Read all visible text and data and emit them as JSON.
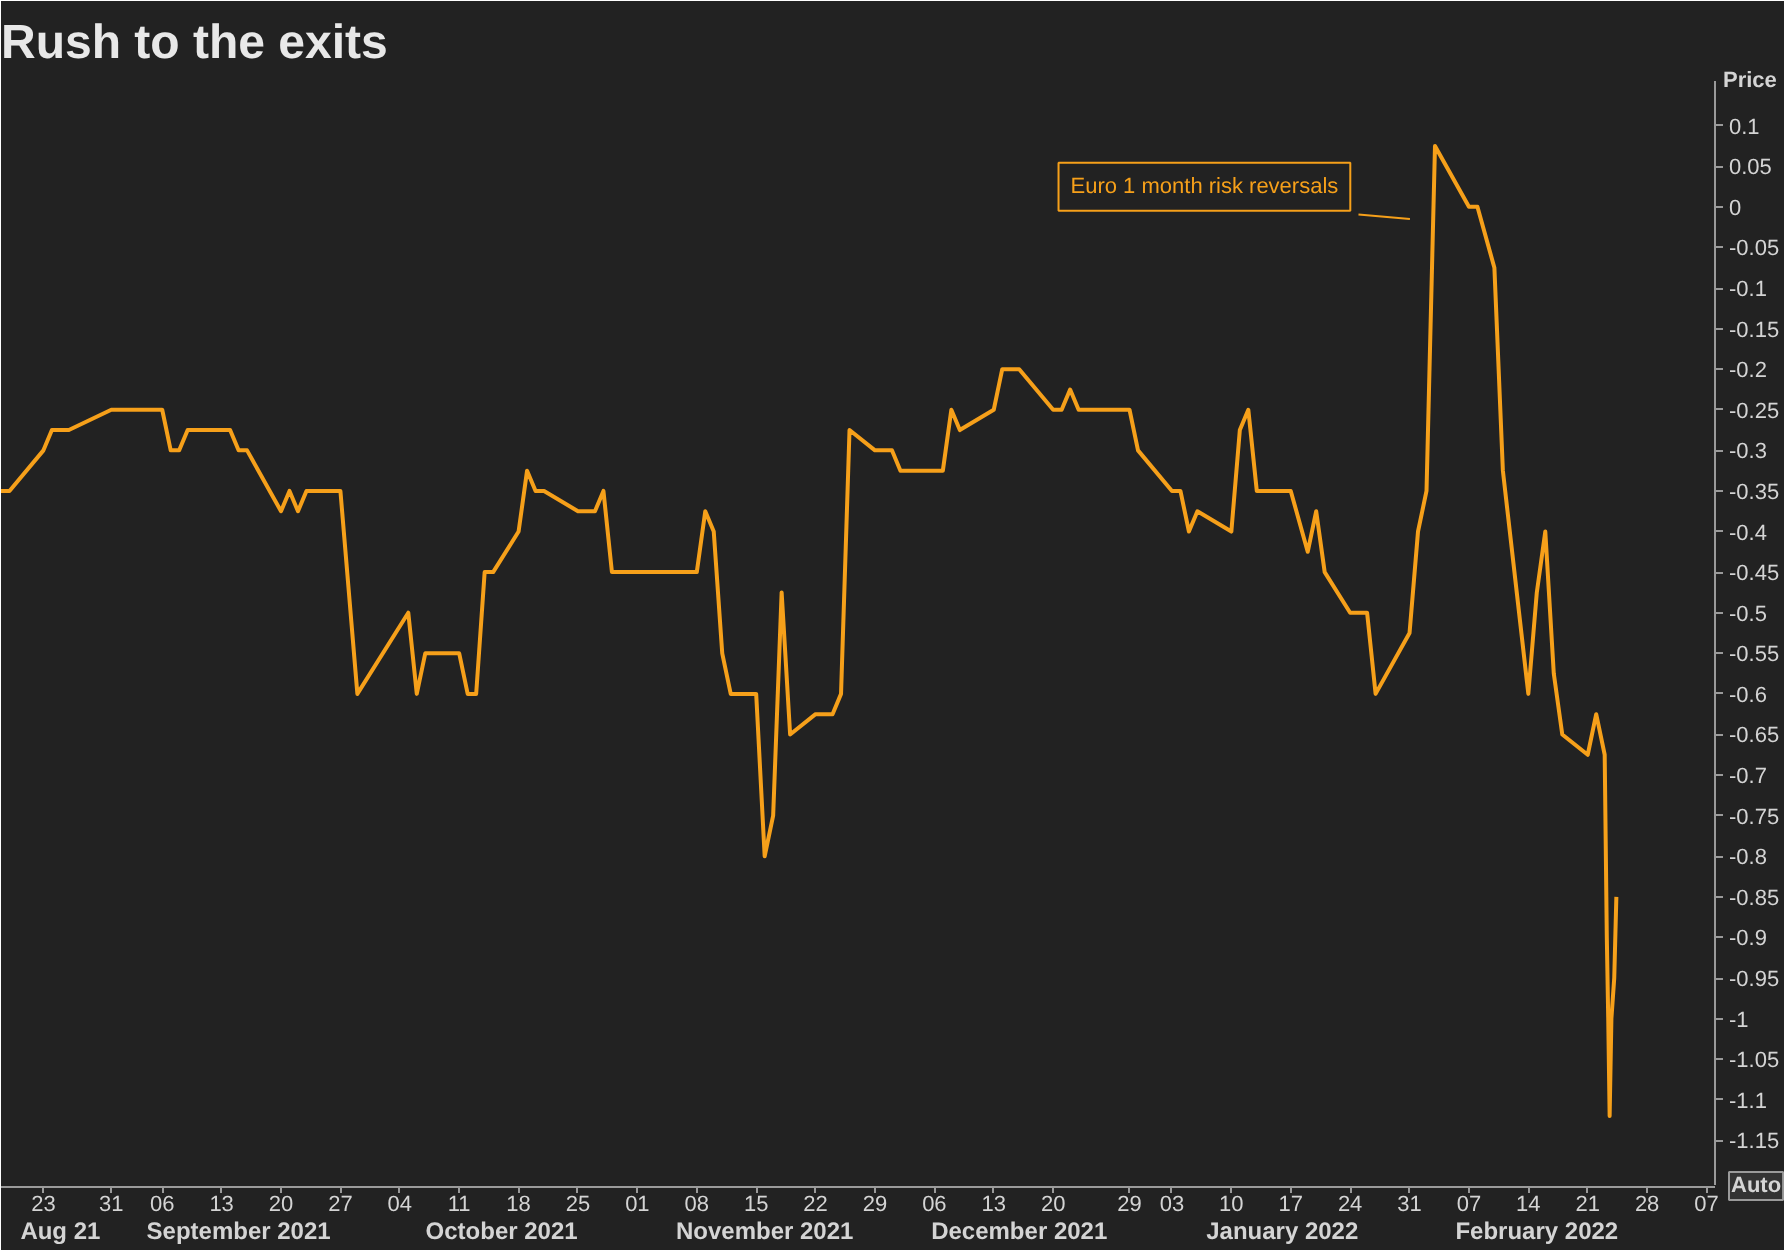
{
  "chart_data": {
    "type": "line",
    "title": "Rush to the exits",
    "ylabel": "Price",
    "annotations": [
      "Auto"
    ],
    "xlim": [
      "2021-08-18",
      "2022-03-08"
    ],
    "xticks": [
      {
        "value": "2021-08-23",
        "label": "23"
      },
      {
        "value": "2021-08-31",
        "label": "31"
      },
      {
        "value": "2021-09-06",
        "label": "06"
      },
      {
        "value": "2021-09-13",
        "label": "13"
      },
      {
        "value": "2021-09-20",
        "label": "20"
      },
      {
        "value": "2021-09-27",
        "label": "27"
      },
      {
        "value": "2021-10-04",
        "label": "04"
      },
      {
        "value": "2021-10-11",
        "label": "11"
      },
      {
        "value": "2021-10-18",
        "label": "18"
      },
      {
        "value": "2021-10-25",
        "label": "25"
      },
      {
        "value": "2021-11-01",
        "label": "01"
      },
      {
        "value": "2021-11-08",
        "label": "08"
      },
      {
        "value": "2021-11-15",
        "label": "15"
      },
      {
        "value": "2021-11-22",
        "label": "22"
      },
      {
        "value": "2021-11-29",
        "label": "29"
      },
      {
        "value": "2021-12-06",
        "label": "06"
      },
      {
        "value": "2021-12-13",
        "label": "13"
      },
      {
        "value": "2021-12-20",
        "label": "20"
      },
      {
        "value": "2021-12-29",
        "label": "29"
      },
      {
        "value": "2022-01-03",
        "label": "03"
      },
      {
        "value": "2022-01-10",
        "label": "10"
      },
      {
        "value": "2022-01-17",
        "label": "17"
      },
      {
        "value": "2022-01-24",
        "label": "24"
      },
      {
        "value": "2022-01-31",
        "label": "31"
      },
      {
        "value": "2022-02-07",
        "label": "07"
      },
      {
        "value": "2022-02-14",
        "label": "14"
      },
      {
        "value": "2022-02-21",
        "label": "21"
      },
      {
        "value": "2022-02-28",
        "label": "28"
      },
      {
        "value": "2022-03-07",
        "label": "07"
      }
    ],
    "x2lim": [
      "2021-08-18",
      "2022-03-08"
    ],
    "x2ticks": [
      {
        "value": "2021-08-25",
        "label": "Aug 21"
      },
      {
        "value": "2021-09-15",
        "label": "September 2021"
      },
      {
        "value": "2021-10-16",
        "label": "October 2021"
      },
      {
        "value": "2021-11-16",
        "label": "November 2021"
      },
      {
        "value": "2021-12-16",
        "label": "December 2021"
      },
      {
        "value": "2022-01-16",
        "label": "January 2022"
      },
      {
        "value": "2022-02-15",
        "label": "February 2022"
      }
    ],
    "ylim": [
      -1.205,
      0.155
    ],
    "yticks": [
      0.1,
      0.05,
      0,
      -0.05,
      -0.1,
      -0.15,
      -0.2,
      -0.25,
      -0.3,
      -0.35,
      -0.4,
      -0.45,
      -0.5,
      -0.55,
      -0.6,
      -0.65,
      -0.7,
      -0.75,
      -0.8,
      -0.85,
      -0.9,
      -0.95,
      -1,
      -1.05,
      -1.1,
      -1.15
    ],
    "line_style": "solid",
    "series": [
      {
        "name": "Euro 1 month risk reversals",
        "color": "#f6a01a",
        "x": [
          "2021-08-18",
          "2021-08-19",
          "2021-08-23",
          "2021-08-24",
          "2021-08-26",
          "2021-08-31",
          "2021-09-06",
          "2021-09-07",
          "2021-09-08",
          "2021-09-09",
          "2021-09-14",
          "2021-09-15",
          "2021-09-16",
          "2021-09-20",
          "2021-09-21",
          "2021-09-22",
          "2021-09-23",
          "2021-09-27",
          "2021-09-29",
          "2021-10-05",
          "2021-10-06",
          "2021-10-07",
          "2021-10-11",
          "2021-10-12",
          "2021-10-13",
          "2021-10-14",
          "2021-10-15",
          "2021-10-18",
          "2021-10-19",
          "2021-10-20",
          "2021-10-21",
          "2021-10-25",
          "2021-10-27",
          "2021-10-28",
          "2021-10-29",
          "2021-11-08",
          "2021-11-09",
          "2021-11-10",
          "2021-11-11",
          "2021-11-12",
          "2021-11-15",
          "2021-11-16",
          "2021-11-17",
          "2021-11-18",
          "2021-11-19",
          "2021-11-22",
          "2021-11-24",
          "2021-11-25",
          "2021-11-26",
          "2021-11-29",
          "2021-12-01",
          "2021-12-02",
          "2021-12-07",
          "2021-12-08",
          "2021-12-09",
          "2021-12-13",
          "2021-12-14",
          "2021-12-16",
          "2021-12-20",
          "2021-12-21",
          "2021-12-22",
          "2021-12-23",
          "2021-12-29",
          "2021-12-30",
          "2022-01-03",
          "2022-01-04",
          "2022-01-05",
          "2022-01-06",
          "2022-01-10",
          "2022-01-11",
          "2022-01-12",
          "2022-01-13",
          "2022-01-17",
          "2022-01-19",
          "2022-01-20",
          "2022-01-21",
          "2022-01-24",
          "2022-01-26",
          "2022-01-27",
          "2022-01-31",
          "2022-02-01",
          "2022-02-02",
          "2022-02-03",
          "2022-02-07",
          "2022-02-08",
          "2022-02-10",
          "2022-02-11",
          "2022-02-14",
          "2022-02-15",
          "2022-02-16",
          "2022-02-17",
          "2022-02-18",
          "2022-02-21",
          "2022-02-22",
          "2022-02-23",
          "2022-02-23T06:00",
          "2022-02-23T10:00",
          "2022-02-23T14:00",
          "2022-02-23T19:00",
          "2022-02-24T03:00",
          "2022-02-24T09:00"
        ],
        "values": [
          -0.35,
          -0.35,
          -0.3,
          -0.275,
          -0.275,
          -0.25,
          -0.25,
          -0.3,
          -0.3,
          -0.275,
          -0.275,
          -0.3,
          -0.3,
          -0.375,
          -0.35,
          -0.375,
          -0.35,
          -0.35,
          -0.6,
          -0.5,
          -0.6,
          -0.55,
          -0.55,
          -0.6,
          -0.6,
          -0.45,
          -0.45,
          -0.4,
          -0.325,
          -0.35,
          -0.35,
          -0.375,
          -0.375,
          -0.35,
          -0.45,
          -0.45,
          -0.375,
          -0.4,
          -0.55,
          -0.6,
          -0.6,
          -0.8,
          -0.75,
          -0.475,
          -0.65,
          -0.625,
          -0.625,
          -0.6,
          -0.275,
          -0.3,
          -0.3,
          -0.325,
          -0.325,
          -0.25,
          -0.275,
          -0.25,
          -0.2,
          -0.2,
          -0.25,
          -0.25,
          -0.225,
          -0.25,
          -0.25,
          -0.3,
          -0.35,
          -0.35,
          -0.4,
          -0.375,
          -0.4,
          -0.275,
          -0.25,
          -0.35,
          -0.35,
          -0.425,
          -0.375,
          -0.45,
          -0.5,
          -0.5,
          -0.6,
          -0.525,
          -0.4,
          -0.35,
          0.075,
          0,
          0,
          -0.075,
          -0.325,
          -0.6,
          -0.475,
          -0.4,
          -0.575,
          -0.65,
          -0.675,
          -0.625,
          -0.675,
          -0.9,
          -1.0,
          -1.12,
          -1.0,
          -0.95,
          -0.85
        ]
      }
    ]
  }
}
